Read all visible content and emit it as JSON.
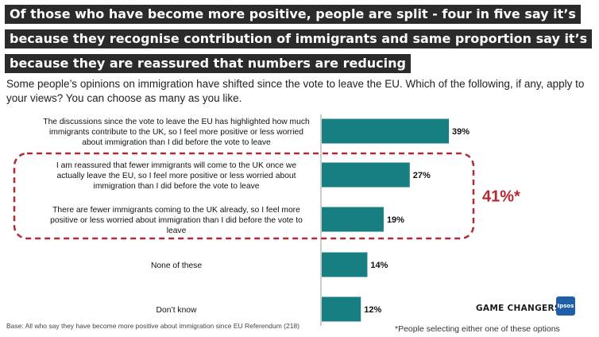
{
  "title_lines": [
    "Of those who have become more positive, people are split - four in five say it’s",
    "because they recognise contribution of immigrants and same proportion say it’s",
    "because they are reassured that numbers are reducing"
  ],
  "subtitle": "Some people’s opinions on immigration have shifted since the vote to leave the EU. Which of the following, if any, apply to your views? You can choose as many as you like.",
  "chart_data": {
    "type": "bar",
    "orientation": "horizontal",
    "categories": [
      [
        "The discussions since the vote to leave the EU has highlighted how much",
        "immigrants contribute to the UK, so I feel more positive or less worried",
        "about immigration than I did before the vote to leave"
      ],
      [
        "I am reassured that fewer immigrants will come to the UK once we",
        "actually leave the EU, so I feel more positive or less worried about",
        "immigration than I did before the vote to leave"
      ],
      [
        "There are fewer immigrants coming to the UK already, so I feel more",
        "positive or less worried about immigration than I did before the vote to",
        "leave"
      ],
      [
        "None of these"
      ],
      [
        "Don’t know"
      ]
    ],
    "values": [
      39,
      27,
      19,
      14,
      12
    ],
    "value_labels": [
      "39%",
      "27%",
      "19%",
      "14%",
      "12%"
    ],
    "bar_color": "#177f82",
    "highlight": {
      "categories": [
        1,
        2
      ],
      "label": "41%*",
      "color": "#b02a34"
    }
  },
  "base_note": "Base: All who say they have become more positive about immigration since EU Referendum (218)",
  "footnote": "*People selecting either one of these options",
  "brand": "GAME CHANGERS",
  "logo_text": "Ipsos",
  "logo_color": "#1f5fa8"
}
